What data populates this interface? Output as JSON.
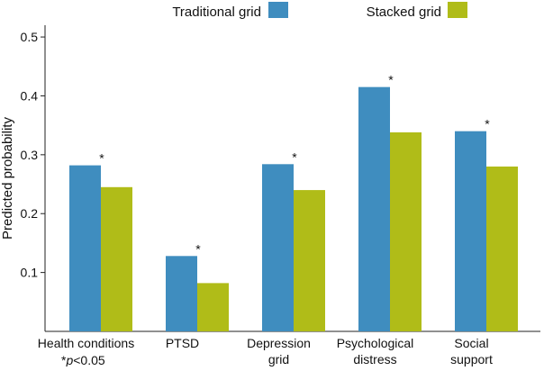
{
  "chart_data": {
    "type": "bar",
    "title": "",
    "xlabel": "",
    "ylabel": "Predicted probability",
    "ylim": [
      0,
      0.52
    ],
    "yticks": [
      0.1,
      0.2,
      0.3,
      0.4,
      0.5
    ],
    "ytick_labels": [
      "0.1",
      "0.2",
      "0.3",
      "0.4",
      "0.5"
    ],
    "grid": false,
    "legend_position": "top",
    "categories": [
      [
        "Health conditions"
      ],
      [
        "PTSD"
      ],
      [
        "Depression",
        "grid"
      ],
      [
        "Psychological",
        "distress"
      ],
      [
        "Social",
        "support"
      ]
    ],
    "series": [
      {
        "name": "Traditional grid",
        "color": "#3f8dbf",
        "values": [
          0.282,
          0.128,
          0.284,
          0.415,
          0.34
        ]
      },
      {
        "name": "Stacked grid",
        "color": "#b0bc18",
        "values": [
          0.245,
          0.082,
          0.24,
          0.338,
          0.28
        ]
      }
    ],
    "significance_marker": "*",
    "significant": [
      true,
      true,
      true,
      true,
      true
    ],
    "footnote": {
      "prefix": "*",
      "italic": "p",
      "suffix": "<0.05"
    }
  }
}
